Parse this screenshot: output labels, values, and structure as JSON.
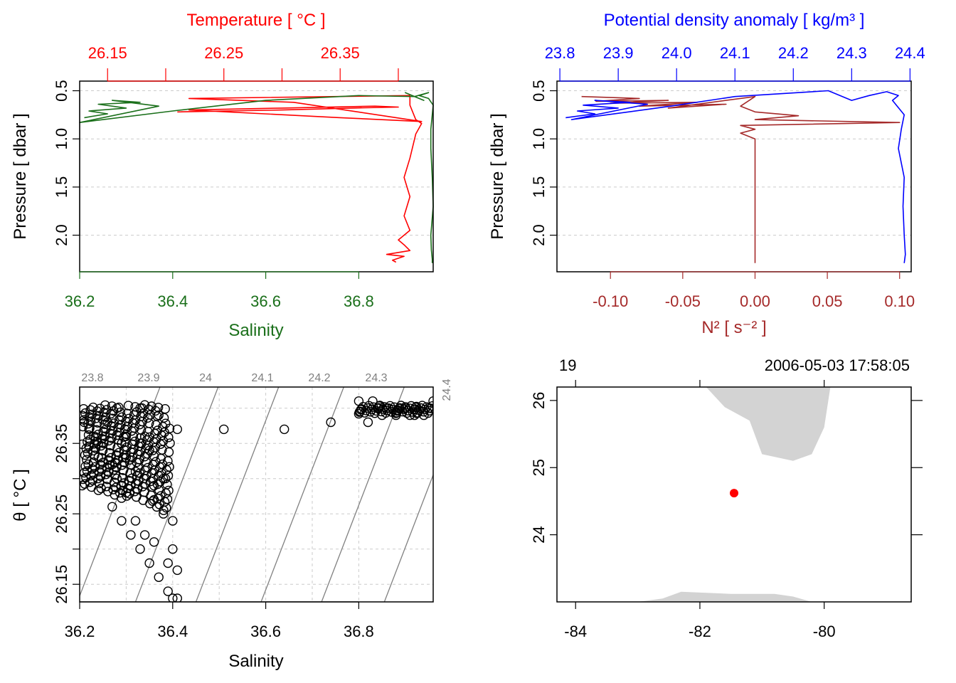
{
  "colors": {
    "salinity": "#1a6f1a",
    "temperature": "#ff0000",
    "density": "#0000ff",
    "n2": "#a52a2a",
    "grid": "#cccccc",
    "land": "#d3d3d3",
    "station": "#ff0000",
    "isopycnal": "#808080",
    "axis": "#000000"
  },
  "chart_data": [
    {
      "type": "line",
      "panel": "top-left",
      "title": "Temperature [ °C ]",
      "xlabel": "Salinity",
      "ylabel": "Pressure [ dbar ]",
      "grid": true,
      "ylim": [
        2.38,
        0.4
      ],
      "xlim_salinity": [
        36.2,
        36.96
      ],
      "xlim_temperature": [
        26.126,
        26.43
      ],
      "yticks": [
        "0.5",
        "1.0",
        "1.5",
        "2.0"
      ],
      "xticks_bottom": [
        "36.2",
        "36.4",
        "36.6",
        "36.8"
      ],
      "xticks_top": [
        "26.15",
        "26.25",
        "26.35"
      ],
      "series": [
        {
          "name": "Salinity",
          "axis": "bottom",
          "x": [
            36.21,
            36.26,
            36.22,
            36.3,
            36.24,
            36.33,
            36.27,
            36.37,
            36.2,
            36.4,
            36.6,
            36.8,
            36.92,
            36.9,
            36.94,
            36.92,
            36.95,
            36.93,
            36.95,
            36.96,
            36.955,
            36.955,
            36.958,
            36.96,
            36.955,
            36.956,
            36.958,
            36.958
          ],
          "pressure": [
            0.78,
            0.74,
            0.71,
            0.68,
            0.64,
            0.62,
            0.6,
            0.66,
            0.83,
            0.71,
            0.6,
            0.55,
            0.56,
            0.52,
            0.6,
            0.56,
            0.52,
            0.55,
            0.58,
            0.65,
            0.9,
            1.1,
            1.4,
            1.7,
            2.0,
            2.15,
            2.25,
            2.29
          ]
        },
        {
          "name": "Temperature",
          "axis": "top",
          "x": [
            26.21,
            26.3,
            26.36,
            26.4,
            26.38,
            26.3,
            26.22,
            26.35,
            26.42,
            26.31,
            26.22,
            26.41,
            26.41,
            26.415,
            26.42,
            26.415,
            26.41,
            26.405,
            26.41,
            26.405,
            26.41,
            26.4,
            26.405,
            26.41,
            26.39,
            26.405,
            26.395,
            26.398
          ],
          "pressure": [
            0.72,
            0.7,
            0.68,
            0.67,
            0.66,
            0.68,
            0.7,
            0.78,
            0.82,
            0.62,
            0.58,
            0.55,
            0.65,
            0.8,
            0.84,
            0.95,
            1.2,
            1.4,
            1.6,
            1.8,
            1.95,
            2.05,
            2.1,
            2.16,
            2.2,
            2.22,
            2.26,
            2.28
          ]
        }
      ]
    },
    {
      "type": "line",
      "panel": "top-right",
      "title": "Potential density anomaly [ kg/m³ ]",
      "xlabel": "N² [ s⁻² ]",
      "ylabel": "Pressure [ dbar ]",
      "grid": true,
      "ylim": [
        2.38,
        0.4
      ],
      "xlim_n2": [
        -0.137,
        0.108
      ],
      "xlim_density": [
        23.795,
        24.402
      ],
      "yticks": [
        "0.5",
        "1.0",
        "1.5",
        "2.0"
      ],
      "xticks_bottom": [
        "-0.10",
        "-0.05",
        "0.00",
        "0.05",
        "0.10"
      ],
      "xticks_top": [
        "23.8",
        "23.9",
        "24.0",
        "24.1",
        "24.2",
        "24.3",
        "24.4"
      ],
      "series": [
        {
          "name": "Potential density anomaly",
          "axis": "top",
          "x": [
            23.81,
            23.86,
            23.83,
            23.9,
            23.84,
            23.92,
            23.86,
            23.95,
            23.82,
            23.99,
            24.1,
            24.26,
            24.3,
            24.33,
            24.36,
            24.38,
            24.37,
            24.39,
            24.385,
            24.38,
            24.39,
            24.388,
            24.39,
            24.392,
            24.39
          ],
          "pressure": [
            0.78,
            0.74,
            0.71,
            0.68,
            0.65,
            0.62,
            0.6,
            0.64,
            0.8,
            0.66,
            0.56,
            0.5,
            0.6,
            0.55,
            0.51,
            0.55,
            0.6,
            0.75,
            0.9,
            1.1,
            1.4,
            1.7,
            2.0,
            2.2,
            2.29
          ]
        },
        {
          "name": "N²",
          "axis": "bottom",
          "x": [
            -0.12,
            -0.08,
            -0.11,
            -0.06,
            -0.1,
            -0.04,
            -0.08,
            -0.02,
            -0.06,
            0.0,
            -0.01,
            0.0,
            0.03,
            0.0,
            0.1,
            -0.01,
            0.0,
            -0.01,
            0.0,
            0.0,
            0.0,
            0.0,
            0.0,
            0.0
          ],
          "pressure": [
            0.56,
            0.58,
            0.61,
            0.6,
            0.63,
            0.62,
            0.66,
            0.64,
            0.68,
            0.56,
            0.66,
            0.72,
            0.76,
            0.8,
            0.83,
            0.86,
            0.9,
            0.94,
            1.0,
            1.2,
            1.5,
            1.8,
            2.1,
            2.29
          ]
        }
      ]
    },
    {
      "type": "scatter",
      "panel": "bottom-left",
      "xlabel": "Salinity",
      "ylabel": "θ [ °C ]",
      "grid": true,
      "xlim": [
        36.2,
        36.96
      ],
      "ylim": [
        26.125,
        26.43
      ],
      "xticks": [
        "36.2",
        "36.4",
        "36.6",
        "36.8"
      ],
      "yticks": [
        "26.15",
        "26.25",
        "26.35"
      ],
      "isopycnal_labels": [
        "23.8",
        "23.9",
        "24",
        "24.1",
        "24.2",
        "24.3",
        "24.4"
      ],
      "points": [
        [
          36.21,
          26.38
        ],
        [
          36.23,
          26.36
        ],
        [
          36.25,
          26.34
        ],
        [
          36.27,
          26.32
        ],
        [
          36.24,
          26.33
        ],
        [
          36.28,
          26.3
        ],
        [
          36.3,
          26.28
        ],
        [
          36.26,
          26.38
        ],
        [
          36.3,
          26.36
        ],
        [
          36.33,
          26.35
        ],
        [
          36.35,
          26.34
        ],
        [
          36.3,
          26.33
        ],
        [
          36.32,
          26.31
        ],
        [
          36.36,
          26.29
        ],
        [
          36.27,
          26.26
        ],
        [
          36.29,
          26.24
        ],
        [
          36.31,
          26.22
        ],
        [
          36.33,
          26.2
        ],
        [
          36.35,
          26.18
        ],
        [
          36.37,
          26.16
        ],
        [
          36.39,
          26.14
        ],
        [
          36.4,
          26.13
        ],
        [
          36.41,
          26.13
        ],
        [
          36.32,
          26.24
        ],
        [
          36.34,
          26.22
        ],
        [
          36.36,
          26.21
        ],
        [
          36.38,
          26.25
        ],
        [
          36.4,
          26.24
        ],
        [
          36.39,
          26.18
        ],
        [
          36.41,
          26.17
        ],
        [
          36.4,
          26.2
        ],
        [
          36.36,
          26.27
        ],
        [
          36.38,
          26.3
        ],
        [
          36.41,
          26.37
        ],
        [
          36.51,
          26.37
        ],
        [
          36.64,
          26.37
        ],
        [
          36.74,
          26.38
        ],
        [
          36.82,
          26.38
        ],
        [
          36.8,
          26.41
        ],
        [
          36.83,
          26.41
        ],
        [
          36.86,
          26.4
        ],
        [
          36.88,
          26.39
        ],
        [
          36.9,
          26.4
        ],
        [
          36.92,
          26.39
        ],
        [
          36.94,
          26.39
        ],
        [
          36.95,
          26.4
        ],
        [
          36.96,
          26.41
        ],
        [
          36.85,
          26.39
        ],
        [
          36.91,
          26.39
        ],
        [
          36.22,
          26.37
        ],
        [
          36.28,
          26.4
        ],
        [
          36.33,
          26.4
        ],
        [
          36.37,
          26.39
        ],
        [
          36.24,
          26.35
        ],
        [
          36.29,
          26.35
        ],
        [
          36.34,
          26.36
        ]
      ]
    },
    {
      "type": "map",
      "panel": "bottom-right",
      "xlim": [
        -84.3,
        -78.6
      ],
      "ylim": [
        23.0,
        26.2
      ],
      "xticks": [
        "-84",
        "-82",
        "-80"
      ],
      "yticks": [
        "24",
        "25",
        "26"
      ],
      "top_left_label": "19",
      "top_right_label": "2006-05-03 17:58:05",
      "station": {
        "lon": -81.45,
        "lat": 24.62
      },
      "land": [
        [
          [
            -81.9,
            26.2
          ],
          [
            -81.6,
            25.9
          ],
          [
            -81.2,
            25.7
          ],
          [
            -81.0,
            25.2
          ],
          [
            -80.5,
            25.1
          ],
          [
            -80.2,
            25.2
          ],
          [
            -80.0,
            25.6
          ],
          [
            -79.9,
            26.2
          ]
        ],
        [
          [
            -83.0,
            23.0
          ],
          [
            -82.6,
            23.05
          ],
          [
            -82.3,
            23.15
          ],
          [
            -81.5,
            23.12
          ],
          [
            -80.8,
            23.12
          ],
          [
            -80.5,
            23.08
          ],
          [
            -80.2,
            23.0
          ]
        ]
      ]
    }
  ]
}
